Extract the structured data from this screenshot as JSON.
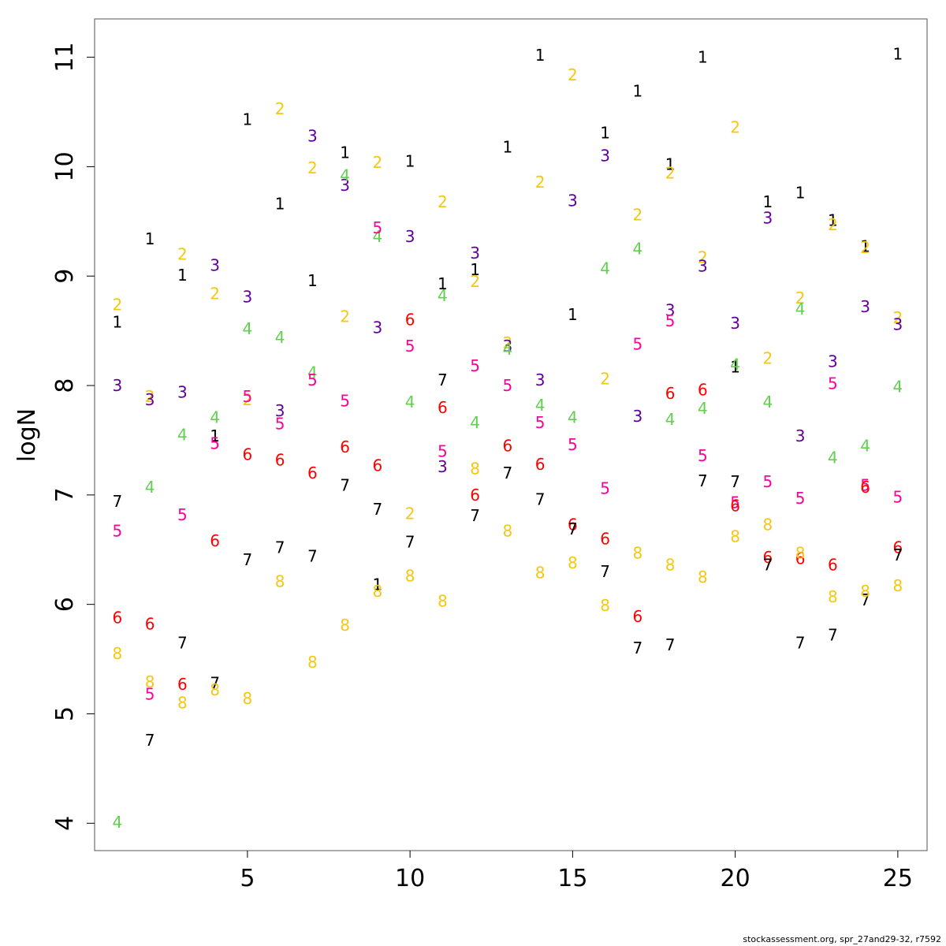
{
  "footer": "stockassessment.org, spr_27and29-32, r7592",
  "chart_data": {
    "type": "scatter",
    "title": "",
    "xlabel": "",
    "ylabel": "logN",
    "xlim": [
      0.3,
      25.9
    ],
    "ylim": [
      3.75,
      11.35
    ],
    "x_ticks": [
      5,
      10,
      15,
      20,
      25
    ],
    "y_ticks": [
      4,
      5,
      6,
      7,
      8,
      9,
      10,
      11
    ],
    "grid": false,
    "legend": "none",
    "marker": "series number",
    "series": [
      {
        "label": "1",
        "color": "#000000",
        "points": [
          [
            1,
            8.58
          ],
          [
            2,
            9.34
          ],
          [
            3,
            9.01
          ],
          [
            4,
            7.54
          ],
          [
            5,
            10.43
          ],
          [
            6,
            9.66
          ],
          [
            7,
            8.96
          ],
          [
            8,
            10.13
          ],
          [
            9,
            6.18
          ],
          [
            10,
            10.05
          ],
          [
            11,
            8.93
          ],
          [
            12,
            9.06
          ],
          [
            13,
            10.18
          ],
          [
            14,
            11.02
          ],
          [
            15,
            8.65
          ],
          [
            16,
            10.31
          ],
          [
            17,
            10.69
          ],
          [
            18,
            10.02
          ],
          [
            19,
            11.0
          ],
          [
            20,
            8.17
          ],
          [
            21,
            9.68
          ],
          [
            22,
            9.76
          ],
          [
            23,
            9.51
          ],
          [
            24,
            9.27
          ],
          [
            25,
            11.03
          ]
        ]
      },
      {
        "label": "2",
        "color": "#F5C710",
        "points": [
          [
            1,
            8.74
          ],
          [
            2,
            7.9
          ],
          [
            3,
            9.2
          ],
          [
            4,
            8.84
          ],
          [
            5,
            7.87
          ],
          [
            6,
            10.53
          ],
          [
            7,
            9.99
          ],
          [
            8,
            8.63
          ],
          [
            9,
            10.04
          ],
          [
            10,
            6.83
          ],
          [
            11,
            9.68
          ],
          [
            12,
            8.95
          ],
          [
            13,
            8.39
          ],
          [
            14,
            9.86
          ],
          [
            15,
            10.84
          ],
          [
            16,
            8.06
          ],
          [
            17,
            9.56
          ],
          [
            18,
            9.94
          ],
          [
            19,
            9.17
          ],
          [
            20,
            10.36
          ],
          [
            21,
            8.25
          ],
          [
            22,
            8.8
          ],
          [
            23,
            9.47
          ],
          [
            24,
            9.26
          ],
          [
            25,
            8.62
          ]
        ]
      },
      {
        "label": "3",
        "color": "#61009C",
        "points": [
          [
            1,
            8.0
          ],
          [
            2,
            7.87
          ],
          [
            3,
            7.94
          ],
          [
            4,
            9.1
          ],
          [
            5,
            8.81
          ],
          [
            6,
            7.77
          ],
          [
            7,
            10.28
          ],
          [
            8,
            9.83
          ],
          [
            9,
            8.53
          ],
          [
            10,
            9.36
          ],
          [
            11,
            7.26
          ],
          [
            12,
            9.21
          ],
          [
            13,
            8.36
          ],
          [
            14,
            8.05
          ],
          [
            15,
            9.69
          ],
          [
            16,
            10.1
          ],
          [
            17,
            7.72
          ],
          [
            18,
            8.69
          ],
          [
            19,
            9.09
          ],
          [
            20,
            8.57
          ],
          [
            21,
            9.53
          ],
          [
            22,
            7.54
          ],
          [
            23,
            8.22
          ],
          [
            24,
            8.72
          ],
          [
            25,
            8.56
          ]
        ]
      },
      {
        "label": "4",
        "color": "#61D04F",
        "points": [
          [
            1,
            4.01
          ],
          [
            2,
            7.07
          ],
          [
            3,
            7.55
          ],
          [
            4,
            7.71
          ],
          [
            5,
            8.52
          ],
          [
            6,
            8.44
          ],
          [
            7,
            8.12
          ],
          [
            8,
            9.92
          ],
          [
            9,
            9.36
          ],
          [
            10,
            7.85
          ],
          [
            11,
            8.82
          ],
          [
            12,
            7.66
          ],
          [
            13,
            8.33
          ],
          [
            14,
            7.82
          ],
          [
            15,
            7.71
          ],
          [
            16,
            9.07
          ],
          [
            17,
            9.25
          ],
          [
            18,
            7.69
          ],
          [
            19,
            7.79
          ],
          [
            20,
            8.19
          ],
          [
            21,
            7.85
          ],
          [
            22,
            8.7
          ],
          [
            23,
            7.34
          ],
          [
            24,
            7.45
          ],
          [
            25,
            7.99
          ]
        ]
      },
      {
        "label": "5",
        "color": "#FF0099",
        "points": [
          [
            1,
            6.67
          ],
          [
            2,
            5.18
          ],
          [
            3,
            6.82
          ],
          [
            4,
            7.47
          ],
          [
            5,
            7.9
          ],
          [
            6,
            7.65
          ],
          [
            7,
            8.05
          ],
          [
            8,
            7.86
          ],
          [
            9,
            9.44
          ],
          [
            10,
            8.36
          ],
          [
            11,
            7.4
          ],
          [
            12,
            8.18
          ],
          [
            13,
            8.0
          ],
          [
            14,
            7.66
          ],
          [
            15,
            7.46
          ],
          [
            16,
            7.06
          ],
          [
            17,
            8.38
          ],
          [
            18,
            8.59
          ],
          [
            19,
            7.36
          ],
          [
            20,
            6.93
          ],
          [
            21,
            7.12
          ],
          [
            22,
            6.97
          ],
          [
            23,
            8.02
          ],
          [
            24,
            7.09
          ],
          [
            25,
            6.98
          ]
        ]
      },
      {
        "label": "6",
        "color": "#FF0000",
        "points": [
          [
            1,
            5.88
          ],
          [
            2,
            5.82
          ],
          [
            3,
            5.27
          ],
          [
            4,
            6.58
          ],
          [
            5,
            7.37
          ],
          [
            6,
            7.32
          ],
          [
            7,
            7.2
          ],
          [
            8,
            7.44
          ],
          [
            9,
            7.27
          ],
          [
            10,
            8.6
          ],
          [
            11,
            7.8
          ],
          [
            12,
            7.0
          ],
          [
            13,
            7.45
          ],
          [
            14,
            7.28
          ],
          [
            15,
            6.73
          ],
          [
            16,
            6.6
          ],
          [
            17,
            5.89
          ],
          [
            18,
            7.93
          ],
          [
            19,
            7.96
          ],
          [
            20,
            6.9
          ],
          [
            21,
            6.43
          ],
          [
            22,
            6.42
          ],
          [
            23,
            6.36
          ],
          [
            24,
            7.07
          ],
          [
            25,
            6.52
          ]
        ]
      },
      {
        "label": "7",
        "color": "#000000",
        "points": [
          [
            1,
            6.94
          ],
          [
            2,
            4.76
          ],
          [
            3,
            5.65
          ],
          [
            4,
            5.28
          ],
          [
            5,
            6.41
          ],
          [
            6,
            6.52
          ],
          [
            7,
            6.44
          ],
          [
            8,
            7.09
          ],
          [
            9,
            6.87
          ],
          [
            10,
            6.57
          ],
          [
            11,
            8.05
          ],
          [
            12,
            6.81
          ],
          [
            13,
            7.2
          ],
          [
            14,
            6.96
          ],
          [
            15,
            6.69
          ],
          [
            16,
            6.3
          ],
          [
            17,
            5.6
          ],
          [
            18,
            5.63
          ],
          [
            19,
            7.13
          ],
          [
            20,
            7.12
          ],
          [
            21,
            6.36
          ],
          [
            22,
            5.65
          ],
          [
            23,
            5.72
          ],
          [
            24,
            6.04
          ],
          [
            25,
            6.45
          ]
        ]
      },
      {
        "label": "8",
        "color": "#F5C710",
        "points": [
          [
            1,
            5.55
          ],
          [
            2,
            5.29
          ],
          [
            3,
            5.1
          ],
          [
            4,
            5.22
          ],
          [
            5,
            5.14
          ],
          [
            6,
            6.21
          ],
          [
            7,
            5.47
          ],
          [
            8,
            5.81
          ],
          [
            9,
            6.12
          ],
          [
            10,
            6.26
          ],
          [
            11,
            6.03
          ],
          [
            12,
            7.24
          ],
          [
            13,
            6.67
          ],
          [
            14,
            6.29
          ],
          [
            15,
            6.38
          ],
          [
            16,
            5.99
          ],
          [
            17,
            6.47
          ],
          [
            18,
            6.36
          ],
          [
            19,
            6.25
          ],
          [
            20,
            6.62
          ],
          [
            21,
            6.73
          ],
          [
            22,
            6.47
          ],
          [
            23,
            6.07
          ],
          [
            24,
            6.12
          ],
          [
            25,
            6.17
          ]
        ]
      }
    ]
  }
}
